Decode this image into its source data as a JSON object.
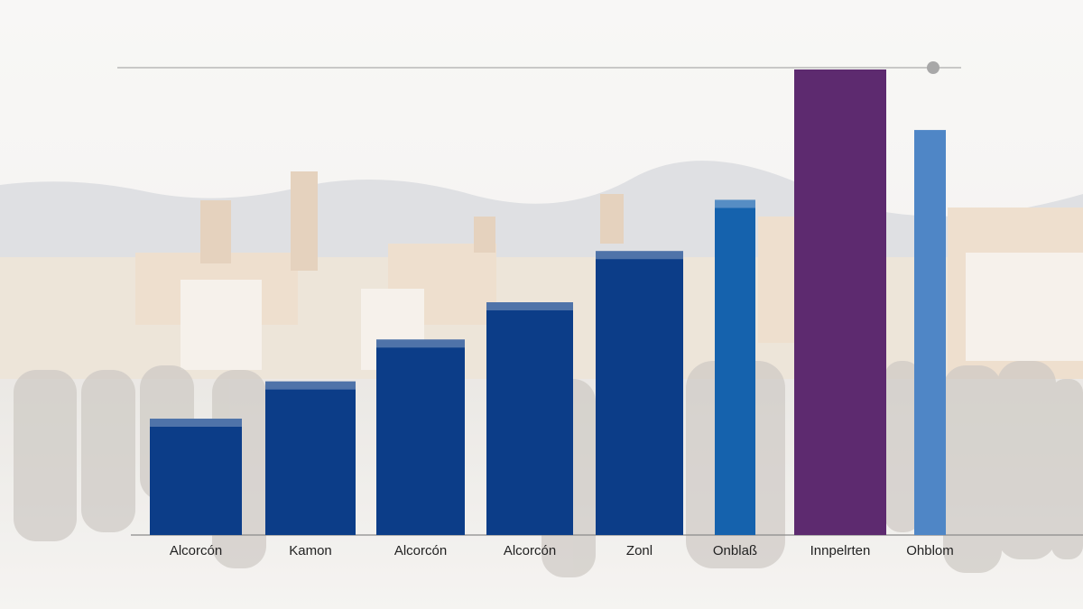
{
  "chart_data": {
    "type": "bar",
    "categories": [
      "Alcorcón",
      "Kamon",
      "Alcorcón",
      "Alcorcón",
      "Zonl",
      "Onblaß",
      "Innpelrten",
      "Ohblom"
    ],
    "values": [
      25,
      33,
      42,
      50,
      61,
      72,
      100,
      87
    ],
    "colors": [
      "#0c3d88",
      "#0c3d88",
      "#0c3d88",
      "#0c3d88",
      "#0c3d88",
      "#1562ad",
      "#5d2a6f",
      "#4f86c6"
    ],
    "ylim": [
      0,
      100
    ]
  }
}
